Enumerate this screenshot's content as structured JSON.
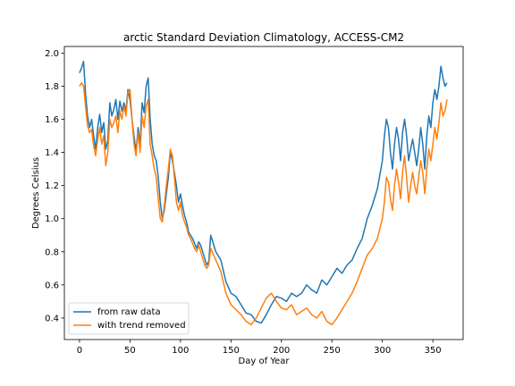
{
  "chart_data": {
    "type": "line",
    "title": "arctic Standard Deviation Climatology, ACCESS-CM2",
    "xlabel": "Day of Year",
    "ylabel": "Degrees Celsius",
    "xlim": [
      -15,
      380
    ],
    "ylim": [
      0.27,
      2.04
    ],
    "xticks": [
      0,
      50,
      100,
      150,
      200,
      250,
      300,
      350
    ],
    "yticks": [
      0.4,
      0.6,
      0.8,
      1.0,
      1.2,
      1.4,
      1.6,
      1.8,
      2.0
    ],
    "xtick_labels": [
      "0",
      "50",
      "100",
      "150",
      "200",
      "250",
      "300",
      "350"
    ],
    "ytick_labels": [
      "0.4",
      "0.6",
      "0.8",
      "1.0",
      "1.2",
      "1.4",
      "1.6",
      "1.8",
      "2.0"
    ],
    "grid": false,
    "legend": "lower-left",
    "series": [
      {
        "name": "from raw data",
        "color": "#1f77b4",
        "x": [
          0,
          2,
          4,
          6,
          8,
          10,
          12,
          14,
          16,
          18,
          20,
          22,
          24,
          26,
          28,
          30,
          32,
          34,
          36,
          38,
          40,
          42,
          44,
          46,
          48,
          50,
          52,
          54,
          56,
          58,
          60,
          62,
          64,
          66,
          68,
          70,
          72,
          74,
          76,
          78,
          80,
          82,
          84,
          86,
          88,
          90,
          92,
          94,
          96,
          98,
          100,
          102,
          104,
          106,
          108,
          110,
          112,
          114,
          116,
          118,
          120,
          122,
          124,
          126,
          128,
          130,
          135,
          140,
          145,
          150,
          155,
          160,
          165,
          170,
          175,
          180,
          185,
          190,
          195,
          200,
          205,
          210,
          215,
          220,
          225,
          230,
          235,
          240,
          245,
          250,
          255,
          260,
          265,
          270,
          275,
          280,
          285,
          290,
          295,
          300,
          302,
          304,
          306,
          308,
          310,
          312,
          314,
          316,
          318,
          320,
          322,
          324,
          326,
          328,
          330,
          332,
          334,
          336,
          338,
          340,
          342,
          344,
          346,
          348,
          350,
          352,
          354,
          356,
          358,
          360,
          362,
          364
        ],
        "values": [
          1.88,
          1.91,
          1.95,
          1.75,
          1.62,
          1.55,
          1.6,
          1.5,
          1.42,
          1.55,
          1.63,
          1.52,
          1.58,
          1.42,
          1.47,
          1.7,
          1.62,
          1.66,
          1.72,
          1.6,
          1.71,
          1.65,
          1.7,
          1.65,
          1.78,
          1.72,
          1.6,
          1.5,
          1.4,
          1.55,
          1.45,
          1.7,
          1.64,
          1.8,
          1.85,
          1.6,
          1.45,
          1.38,
          1.35,
          1.25,
          1.1,
          1.0,
          1.05,
          1.15,
          1.25,
          1.4,
          1.35,
          1.28,
          1.2,
          1.1,
          1.15,
          1.08,
          1.02,
          0.98,
          0.92,
          0.9,
          0.88,
          0.85,
          0.82,
          0.86,
          0.84,
          0.8,
          0.76,
          0.72,
          0.74,
          0.9,
          0.8,
          0.75,
          0.62,
          0.55,
          0.53,
          0.48,
          0.43,
          0.42,
          0.38,
          0.37,
          0.42,
          0.48,
          0.53,
          0.52,
          0.5,
          0.55,
          0.53,
          0.55,
          0.6,
          0.57,
          0.55,
          0.63,
          0.6,
          0.65,
          0.7,
          0.67,
          0.72,
          0.75,
          0.82,
          0.88,
          1.0,
          1.08,
          1.18,
          1.35,
          1.5,
          1.6,
          1.55,
          1.4,
          1.3,
          1.45,
          1.55,
          1.48,
          1.35,
          1.52,
          1.6,
          1.5,
          1.35,
          1.42,
          1.48,
          1.4,
          1.32,
          1.42,
          1.55,
          1.45,
          1.3,
          1.5,
          1.62,
          1.55,
          1.7,
          1.78,
          1.72,
          1.8,
          1.92,
          1.85,
          1.8,
          1.82
        ]
      },
      {
        "name": "with trend removed",
        "color": "#ff7f0e",
        "x": [
          0,
          2,
          4,
          6,
          8,
          10,
          12,
          14,
          16,
          18,
          20,
          22,
          24,
          26,
          28,
          30,
          32,
          34,
          36,
          38,
          40,
          42,
          44,
          46,
          48,
          50,
          52,
          54,
          56,
          58,
          60,
          62,
          64,
          66,
          68,
          70,
          72,
          74,
          76,
          78,
          80,
          82,
          84,
          86,
          88,
          90,
          92,
          94,
          96,
          98,
          100,
          102,
          104,
          106,
          108,
          110,
          112,
          114,
          116,
          118,
          120,
          122,
          124,
          126,
          128,
          130,
          135,
          140,
          145,
          150,
          155,
          160,
          165,
          170,
          175,
          180,
          185,
          190,
          195,
          200,
          205,
          210,
          215,
          220,
          225,
          230,
          235,
          240,
          245,
          250,
          255,
          260,
          265,
          270,
          275,
          280,
          285,
          290,
          295,
          300,
          302,
          304,
          306,
          308,
          310,
          312,
          314,
          316,
          318,
          320,
          322,
          324,
          326,
          328,
          330,
          332,
          334,
          336,
          338,
          340,
          342,
          344,
          346,
          348,
          350,
          352,
          354,
          356,
          358,
          360,
          362,
          364
        ],
        "values": [
          1.8,
          1.82,
          1.8,
          1.68,
          1.56,
          1.52,
          1.54,
          1.44,
          1.38,
          1.48,
          1.55,
          1.45,
          1.5,
          1.32,
          1.4,
          1.6,
          1.55,
          1.58,
          1.62,
          1.52,
          1.65,
          1.6,
          1.68,
          1.62,
          1.76,
          1.78,
          1.6,
          1.45,
          1.38,
          1.52,
          1.4,
          1.62,
          1.55,
          1.68,
          1.72,
          1.45,
          1.38,
          1.3,
          1.25,
          1.12,
          1.0,
          0.98,
          1.08,
          1.2,
          1.3,
          1.42,
          1.38,
          1.25,
          1.1,
          1.05,
          1.1,
          1.02,
          0.98,
          0.95,
          0.9,
          0.88,
          0.85,
          0.82,
          0.8,
          0.84,
          0.8,
          0.76,
          0.72,
          0.7,
          0.72,
          0.82,
          0.75,
          0.68,
          0.55,
          0.48,
          0.45,
          0.42,
          0.38,
          0.36,
          0.4,
          0.46,
          0.52,
          0.55,
          0.5,
          0.46,
          0.45,
          0.48,
          0.42,
          0.44,
          0.46,
          0.42,
          0.4,
          0.44,
          0.38,
          0.36,
          0.4,
          0.45,
          0.5,
          0.55,
          0.62,
          0.7,
          0.78,
          0.82,
          0.88,
          1.0,
          1.1,
          1.25,
          1.22,
          1.12,
          1.05,
          1.2,
          1.3,
          1.22,
          1.12,
          1.28,
          1.38,
          1.25,
          1.1,
          1.2,
          1.28,
          1.2,
          1.15,
          1.25,
          1.35,
          1.28,
          1.15,
          1.3,
          1.42,
          1.35,
          1.45,
          1.55,
          1.48,
          1.58,
          1.7,
          1.62,
          1.65,
          1.72
        ]
      }
    ]
  }
}
